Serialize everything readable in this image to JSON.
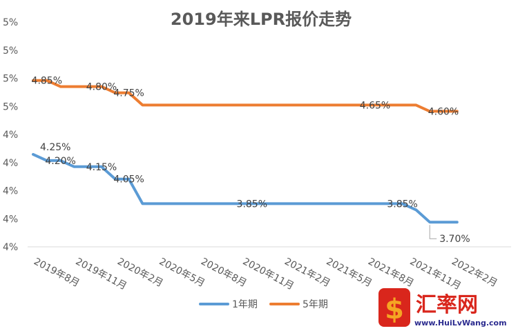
{
  "chart_data": {
    "type": "line",
    "title": "2019年来LPR报价走势",
    "xlabel": "",
    "ylabel": "",
    "x_ticks": [
      "2019年8月",
      "2019年11月",
      "2020年2月",
      "2020年5月",
      "2020年8月",
      "2020年11月",
      "2021年2月",
      "2021年5月",
      "2021年8月",
      "2021年11月",
      "2022年2月"
    ],
    "y_ticks": [
      "4%",
      "4%",
      "4%",
      "4%",
      "4%",
      "5%",
      "5%",
      "5%",
      "5%"
    ],
    "ylim": [
      3.5,
      5.1
    ],
    "grid": false,
    "legend": "bottom",
    "series": [
      {
        "name": "1年期",
        "color": "#5b9bd5",
        "points": [
          [
            "2019-08",
            4.25
          ],
          [
            "2019-09",
            4.2
          ],
          [
            "2019-10",
            4.2
          ],
          [
            "2019-11",
            4.15
          ],
          [
            "2019-12",
            4.15
          ],
          [
            "2020-01",
            4.15
          ],
          [
            "2020-02",
            4.05
          ],
          [
            "2020-03",
            4.05
          ],
          [
            "2020-04",
            3.85
          ],
          [
            "2020-05",
            3.85
          ],
          [
            "2020-06",
            3.85
          ],
          [
            "2020-07",
            3.85
          ],
          [
            "2020-08",
            3.85
          ],
          [
            "2020-09",
            3.85
          ],
          [
            "2020-10",
            3.85
          ],
          [
            "2020-11",
            3.85
          ],
          [
            "2020-12",
            3.85
          ],
          [
            "2021-01",
            3.85
          ],
          [
            "2021-02",
            3.85
          ],
          [
            "2021-03",
            3.85
          ],
          [
            "2021-04",
            3.85
          ],
          [
            "2021-05",
            3.85
          ],
          [
            "2021-06",
            3.85
          ],
          [
            "2021-07",
            3.85
          ],
          [
            "2021-08",
            3.85
          ],
          [
            "2021-09",
            3.85
          ],
          [
            "2021-10",
            3.85
          ],
          [
            "2021-11",
            3.85
          ],
          [
            "2021-12",
            3.8
          ],
          [
            "2022-01",
            3.7
          ],
          [
            "2022-02",
            3.7
          ],
          [
            "2022-03",
            3.7
          ]
        ],
        "data_labels": [
          {
            "x": "2019-08",
            "text": "4.25%"
          },
          {
            "x": "2019-10",
            "text": "4.20%"
          },
          {
            "x": "2020-01",
            "text": "4.15%"
          },
          {
            "x": "2020-03",
            "text": "4.05%"
          },
          {
            "x": "2020-12",
            "text": "3.85%"
          },
          {
            "x": "2021-11",
            "text": "3.85%"
          },
          {
            "x": "2022-01",
            "text": "3.70%"
          }
        ]
      },
      {
        "name": "5年期",
        "color": "#ed7d31",
        "points": [
          [
            "2019-08",
            4.85
          ],
          [
            "2019-09",
            4.85
          ],
          [
            "2019-10",
            4.8
          ],
          [
            "2019-11",
            4.8
          ],
          [
            "2019-12",
            4.8
          ],
          [
            "2020-01",
            4.8
          ],
          [
            "2020-02",
            4.75
          ],
          [
            "2020-03",
            4.75
          ],
          [
            "2020-04",
            4.65
          ],
          [
            "2020-05",
            4.65
          ],
          [
            "2020-06",
            4.65
          ],
          [
            "2020-07",
            4.65
          ],
          [
            "2020-08",
            4.65
          ],
          [
            "2020-09",
            4.65
          ],
          [
            "2020-10",
            4.65
          ],
          [
            "2020-11",
            4.65
          ],
          [
            "2020-12",
            4.65
          ],
          [
            "2021-01",
            4.65
          ],
          [
            "2021-02",
            4.65
          ],
          [
            "2021-03",
            4.65
          ],
          [
            "2021-04",
            4.65
          ],
          [
            "2021-05",
            4.65
          ],
          [
            "2021-06",
            4.65
          ],
          [
            "2021-07",
            4.65
          ],
          [
            "2021-08",
            4.65
          ],
          [
            "2021-09",
            4.65
          ],
          [
            "2021-10",
            4.65
          ],
          [
            "2021-11",
            4.65
          ],
          [
            "2021-12",
            4.65
          ],
          [
            "2022-01",
            4.6
          ],
          [
            "2022-02",
            4.6
          ],
          [
            "2022-03",
            4.6
          ]
        ],
        "data_labels": [
          {
            "x": "2019-09",
            "text": "4.85%"
          },
          {
            "x": "2020-01",
            "text": "4.80%"
          },
          {
            "x": "2020-03",
            "text": "4.75%"
          },
          {
            "x": "2021-09",
            "text": "4.65%"
          },
          {
            "x": "2022-02",
            "text": "4.60%"
          }
        ]
      }
    ]
  },
  "watermark": {
    "name": "汇率网",
    "url": "www.HuiLvWang.com",
    "colors": {
      "primary": "#d9261c",
      "secondary": "#f5a623",
      "text": "#2b2b8f"
    }
  }
}
